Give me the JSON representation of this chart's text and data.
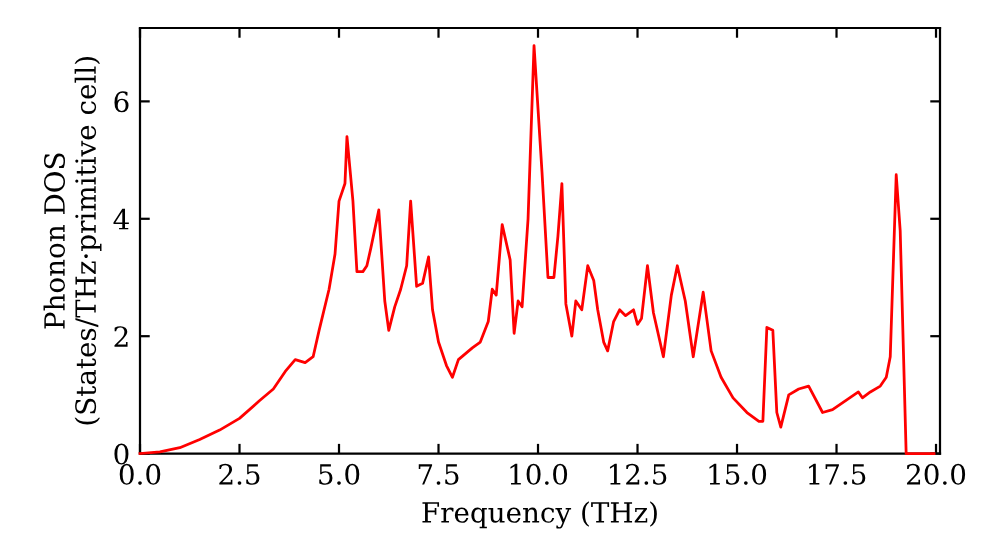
{
  "chart_data": {
    "type": "line",
    "xlabel": "Frequency (THz)",
    "ylabel": "Phonon DOS\n(States/THz·primitive cell)",
    "xlim": [
      0,
      20.1
    ],
    "ylim": [
      0,
      7.25
    ],
    "xticks": [
      {
        "value": 0,
        "label": "0.0"
      },
      {
        "value": 2.5,
        "label": "2.5"
      },
      {
        "value": 5,
        "label": "5.0"
      },
      {
        "value": 7.5,
        "label": "7.5"
      },
      {
        "value": 10,
        "label": "10.0"
      },
      {
        "value": 12.5,
        "label": "12.5"
      },
      {
        "value": 15,
        "label": "15.0"
      },
      {
        "value": 17.5,
        "label": "17.5"
      },
      {
        "value": 20,
        "label": "20.0"
      }
    ],
    "yticks": [
      0,
      2,
      4,
      6
    ],
    "grid": false,
    "legend": false,
    "marker": "none",
    "line_style": "solid",
    "x": [
      0,
      0.5,
      1,
      1.5,
      2,
      2.5,
      3,
      3.35,
      3.65,
      3.9,
      4.15,
      4.35,
      4.5,
      4.75,
      4.9,
      5.0,
      5.15,
      5.2,
      5.35,
      5.45,
      5.6,
      5.7,
      5.8,
      6.0,
      6.15,
      6.25,
      6.4,
      6.55,
      6.7,
      6.8,
      6.95,
      7.1,
      7.25,
      7.35,
      7.5,
      7.7,
      7.85,
      8.0,
      8.35,
      8.55,
      8.75,
      8.85,
      8.95,
      9.1,
      9.3,
      9.4,
      9.5,
      9.6,
      9.75,
      9.9,
      10.1,
      10.25,
      10.4,
      10.5,
      10.6,
      10.7,
      10.85,
      10.95,
      11.1,
      11.25,
      11.4,
      11.5,
      11.65,
      11.75,
      11.9,
      12.05,
      12.2,
      12.4,
      12.5,
      12.6,
      12.75,
      12.9,
      13.15,
      13.35,
      13.5,
      13.7,
      13.9,
      14.15,
      14.35,
      14.6,
      14.9,
      15.25,
      15.55,
      15.65,
      15.75,
      15.9,
      16.0,
      16.1,
      16.3,
      16.55,
      16.8,
      17.15,
      17.4,
      18.05,
      18.15,
      18.35,
      18.6,
      18.75,
      18.85,
      19.0,
      19.1,
      19.25,
      19.95
    ],
    "series": [
      {
        "color": "#ff0000",
        "values": [
          0,
          0.03,
          0.1,
          0.24,
          0.4,
          0.6,
          0.9,
          1.1,
          1.4,
          1.6,
          1.55,
          1.65,
          2.1,
          2.8,
          3.4,
          4.3,
          4.6,
          5.4,
          4.3,
          3.1,
          3.1,
          3.2,
          3.5,
          4.15,
          2.6,
          2.1,
          2.5,
          2.8,
          3.2,
          4.3,
          2.85,
          2.9,
          3.35,
          2.45,
          1.9,
          1.5,
          1.3,
          1.6,
          1.8,
          1.9,
          2.25,
          2.8,
          2.7,
          3.9,
          3.3,
          2.05,
          2.6,
          2.5,
          4.0,
          6.95,
          4.8,
          3.0,
          3.0,
          3.7,
          4.6,
          2.55,
          2.0,
          2.6,
          2.45,
          3.2,
          2.95,
          2.45,
          1.9,
          1.75,
          2.25,
          2.45,
          2.35,
          2.45,
          2.2,
          2.3,
          3.2,
          2.4,
          1.65,
          2.7,
          3.2,
          2.6,
          1.65,
          2.75,
          1.75,
          1.3,
          0.95,
          0.7,
          0.55,
          0.55,
          2.15,
          2.1,
          0.7,
          0.45,
          1.0,
          1.1,
          1.15,
          0.7,
          0.75,
          1.05,
          0.95,
          1.05,
          1.15,
          1.3,
          1.65,
          4.75,
          3.8,
          0,
          0
        ]
      }
    ]
  }
}
